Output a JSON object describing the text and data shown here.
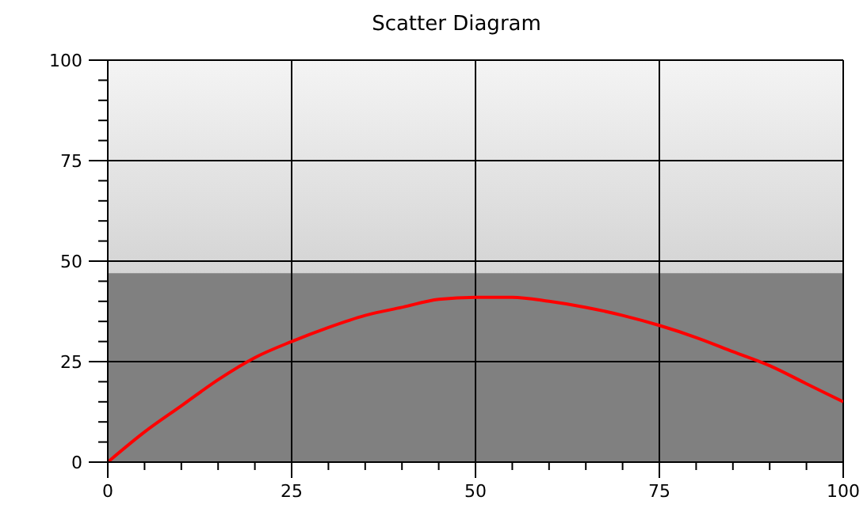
{
  "chart_data": {
    "type": "line",
    "title": "Scatter Diagram",
    "xlim": [
      0,
      100
    ],
    "ylim": [
      0,
      100
    ],
    "xticks": [
      0,
      {
        "value": 5,
        "label": null
      },
      {
        "value": 10,
        "label": null
      },
      {
        "value": 15,
        "label": null
      },
      {
        "value": 20,
        "label": null
      },
      25,
      {
        "value": 30,
        "label": null
      },
      {
        "value": 35,
        "label": null
      },
      {
        "value": 40,
        "label": null
      },
      {
        "value": 45,
        "label": null
      },
      50,
      {
        "value": 55,
        "label": null
      },
      {
        "value": 60,
        "label": null
      },
      {
        "value": 65,
        "label": null
      },
      {
        "value": 70,
        "label": null
      },
      75,
      {
        "value": 80,
        "label": null
      },
      {
        "value": 85,
        "label": null
      },
      {
        "value": 90,
        "label": null
      },
      {
        "value": 95,
        "label": null
      },
      100
    ],
    "yticks": [
      0,
      {
        "value": 5,
        "label": null
      },
      {
        "value": 10,
        "label": null
      },
      {
        "value": 15,
        "label": null
      },
      {
        "value": 20,
        "label": null
      },
      25,
      {
        "value": 30,
        "label": null
      },
      {
        "value": 35,
        "label": null
      },
      {
        "value": 40,
        "label": null
      },
      {
        "value": 45,
        "label": null
      },
      50,
      {
        "value": 55,
        "label": null
      },
      {
        "value": 60,
        "label": null
      },
      {
        "value": 65,
        "label": null
      },
      {
        "value": 70,
        "label": null
      },
      75,
      {
        "value": 80,
        "label": null
      },
      {
        "value": 85,
        "label": null
      },
      {
        "value": 90,
        "label": null
      },
      {
        "value": 95,
        "label": null
      },
      100
    ],
    "grid": true,
    "bands": [
      {
        "axis": "y",
        "from": 0,
        "to": 47,
        "color": "#808080"
      }
    ],
    "series": [
      {
        "color": "#ff0000",
        "x": [
          0,
          5,
          10,
          15,
          20,
          25,
          30,
          35,
          40,
          45,
          50,
          55,
          60,
          65,
          70,
          75,
          80,
          85,
          90,
          95,
          100
        ],
        "values": [
          0,
          7.5,
          14,
          20.5,
          26,
          30,
          33.5,
          36.5,
          38.5,
          40.5,
          41,
          41,
          40,
          38.5,
          36.5,
          34,
          31,
          27.5,
          24,
          19.5,
          15
        ]
      }
    ]
  }
}
